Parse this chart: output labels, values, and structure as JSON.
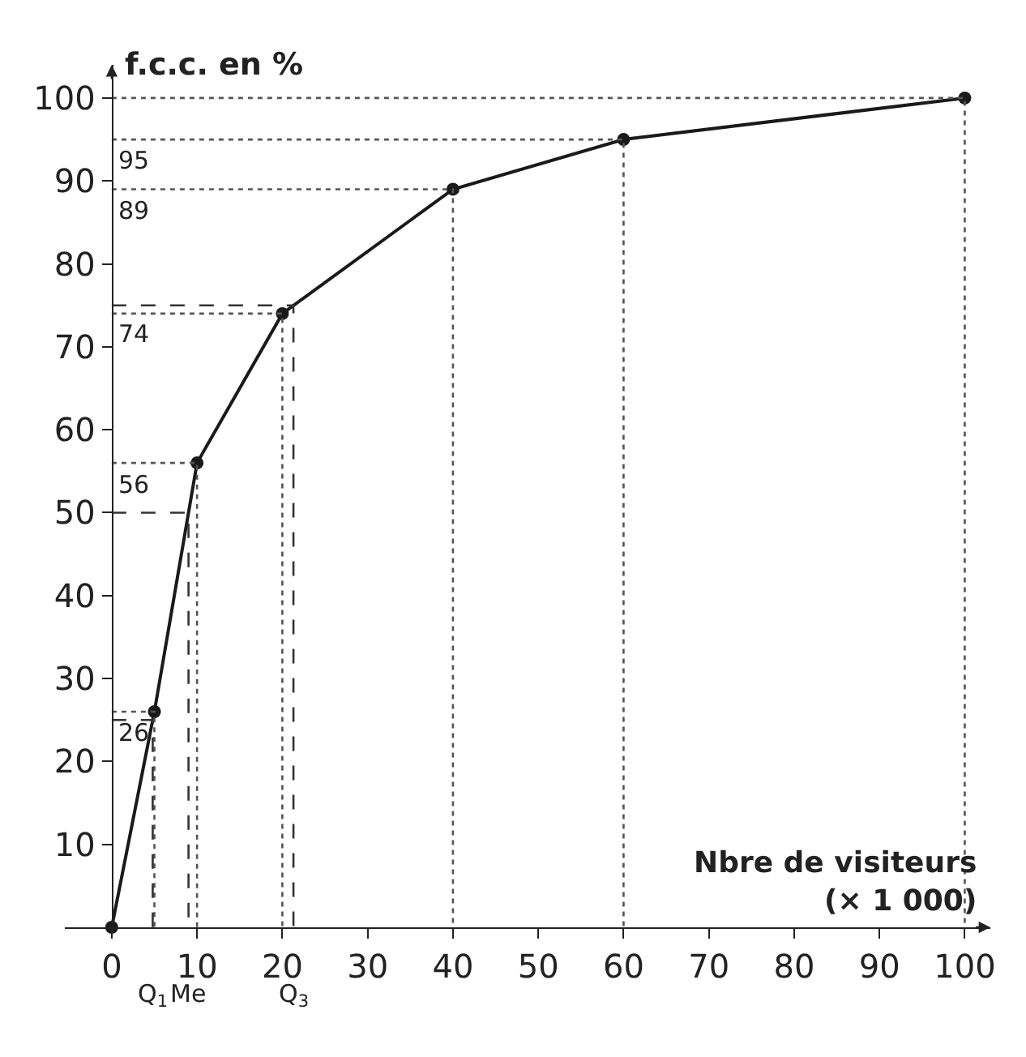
{
  "chart_data": {
    "type": "line",
    "xlabel": "Nbre de visiteurs\n(× 1 000)",
    "ylabel": "f.c.c. en %",
    "x": [
      0,
      5,
      10,
      20,
      40,
      60,
      100
    ],
    "series": [
      {
        "color": "#1a1a1a",
        "values": [
          0,
          26,
          56,
          74,
          89,
          95,
          100
        ],
        "marker": "circle",
        "line_style": "solid"
      },
      {
        "color": "#555555",
        "x": [
          0,
          5,
          5
        ],
        "values": [
          26,
          26,
          0
        ],
        "marker": "none",
        "line_style": "dotted"
      },
      {
        "color": "#555555",
        "x": [
          0,
          10,
          10
        ],
        "values": [
          56,
          56,
          0
        ],
        "marker": "none",
        "line_style": "dotted"
      },
      {
        "color": "#555555",
        "x": [
          0,
          20,
          20
        ],
        "values": [
          74,
          74,
          0
        ],
        "marker": "none",
        "line_style": "dotted"
      },
      {
        "color": "#555555",
        "x": [
          0,
          40,
          40
        ],
        "values": [
          89,
          89,
          0
        ],
        "marker": "none",
        "line_style": "dotted"
      },
      {
        "color": "#555555",
        "x": [
          0,
          60,
          60
        ],
        "values": [
          95,
          95,
          0
        ],
        "marker": "none",
        "line_style": "dotted"
      },
      {
        "color": "#555555",
        "x": [
          0,
          100,
          100
        ],
        "values": [
          100,
          100,
          0
        ],
        "marker": "none",
        "line_style": "dotted"
      },
      {
        "color": "#333333",
        "x": [
          0,
          4.8,
          4.8
        ],
        "values": [
          25,
          25,
          0
        ],
        "marker": "none",
        "line_style": "dashed"
      },
      {
        "color": "#333333",
        "x": [
          0,
          9,
          9
        ],
        "values": [
          50,
          50,
          0
        ],
        "marker": "none",
        "line_style": "dashed"
      },
      {
        "color": "#333333",
        "x": [
          0,
          21.3,
          21.3
        ],
        "values": [
          75,
          75,
          0
        ],
        "marker": "none",
        "line_style": "dashed"
      }
    ],
    "xlim": [
      -5.5,
      103
    ],
    "ylim": [
      0,
      104
    ],
    "xticks": [
      0,
      10,
      20,
      30,
      40,
      50,
      60,
      70,
      80,
      90,
      100
    ],
    "yticks": [
      10,
      20,
      30,
      40,
      50,
      60,
      70,
      80,
      90,
      100
    ],
    "annotations": [
      {
        "text": "26",
        "x": 0,
        "y": 26
      },
      {
        "text": "56",
        "x": 0,
        "y": 56
      },
      {
        "text": "74",
        "x": 0,
        "y": 74
      },
      {
        "text": "89",
        "x": 0,
        "y": 89
      },
      {
        "text": "95",
        "x": 0,
        "y": 95
      },
      {
        "text": "Q$_{1}$",
        "x": 4.8,
        "y": 0
      },
      {
        "text": "Me",
        "x": 9,
        "y": 0
      },
      {
        "text": "Q$_{3}$",
        "x": 21.3,
        "y": 0
      }
    ]
  }
}
